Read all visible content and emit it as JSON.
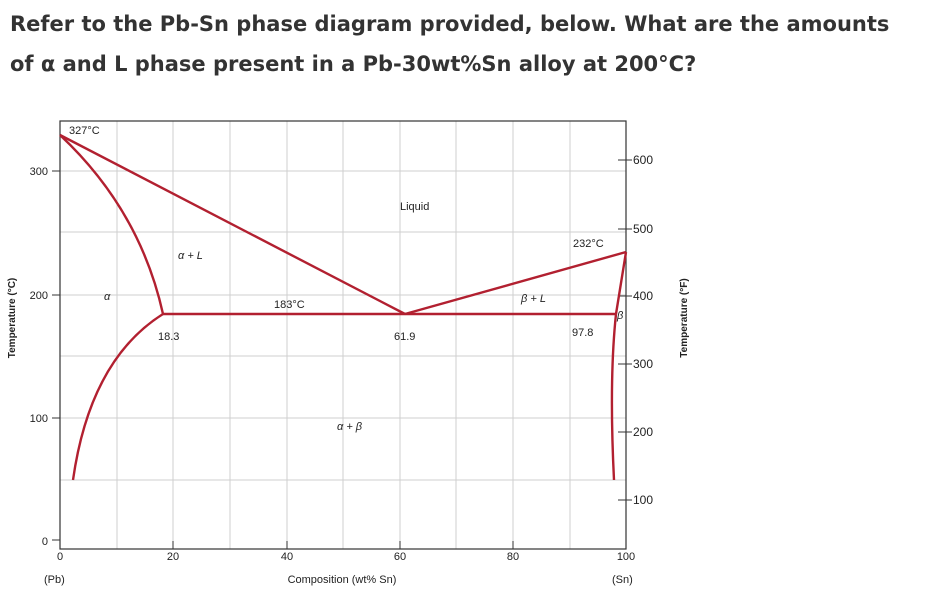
{
  "question": "Refer to the Pb-Sn phase diagram provided, below.  What are the amounts of α and L phase present in a Pb-30wt%Sn alloy at 200°C?",
  "diagram": {
    "left_axis_title": "Temperature (°C)",
    "right_axis_title": "Temperature (°F)",
    "x_axis_title": "Composition (wt% Sn)",
    "x_end_labels": {
      "left": "(Pb)",
      "right": "(Sn)"
    },
    "x_ticks": [
      "0",
      "20",
      "40",
      "60",
      "80",
      "100"
    ],
    "y_ticks_c": [
      "0",
      "100",
      "200",
      "300"
    ],
    "y_ticks_f": [
      "100",
      "200",
      "300",
      "400",
      "500",
      "600"
    ],
    "annotations": {
      "pb_melting": "327°C",
      "sn_melting": "232°C",
      "eutectic_temp": "183°C",
      "alpha_limit": "18.3",
      "eutectic_comp": "61.9",
      "beta_limit": "97.8"
    },
    "regions": {
      "liquid": "Liquid",
      "alpha": "α",
      "alpha_l": "α + L",
      "beta_l": "β + L",
      "alpha_beta": "α + β",
      "beta": "β"
    },
    "colors": {
      "phase_lines": "#b22030",
      "grid": "#cfcfcf",
      "frame": "#333333"
    }
  }
}
